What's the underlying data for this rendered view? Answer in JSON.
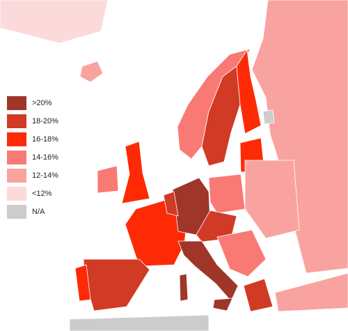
{
  "legend": {
    "items": [
      {
        "label": ">20%",
        "color": "#a0352a"
      },
      {
        "label": "18-20%",
        "color": "#d13a24"
      },
      {
        "label": "16-18%",
        "color": "#fe2a05"
      },
      {
        "label": "14-16%",
        "color": "#f97a74"
      },
      {
        "label": "12-14%",
        "color": "#f9a3a0"
      },
      {
        "label": "<12%",
        "color": "#fcd9da"
      },
      {
        "label": "N/A",
        "color": "#cccccc"
      }
    ]
  }
}
